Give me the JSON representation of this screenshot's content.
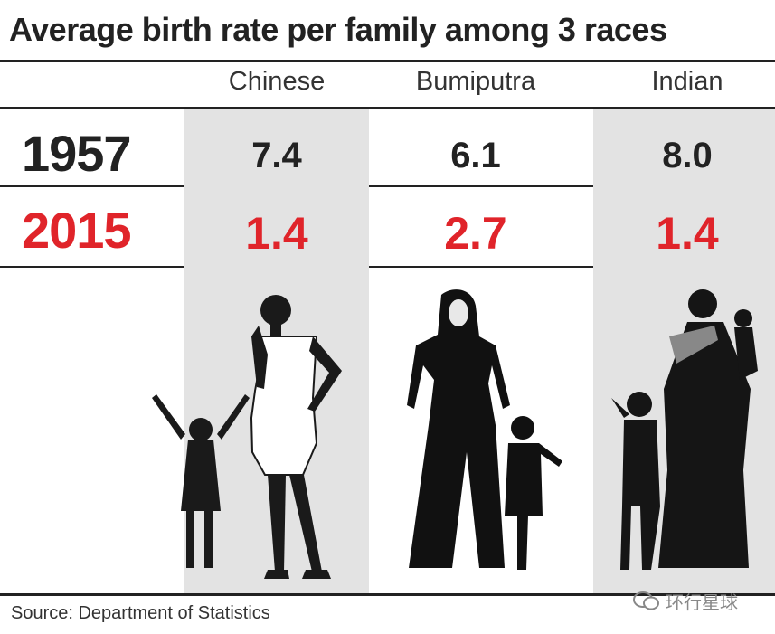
{
  "title": "Average birth rate per family among 3 races",
  "source": "Source: Department of Statistics",
  "watermark": "环行星球",
  "colors": {
    "year_1957": "#222222",
    "year_2015": "#e0242a",
    "band": "#e3e3e3"
  },
  "chart_data": {
    "type": "table",
    "title": "Average birth rate per family among 3 races",
    "columns": [
      "Chinese",
      "Bumiputra",
      "Indian"
    ],
    "rows": [
      {
        "label": "1957",
        "values": [
          "7.4",
          "6.1",
          "8.0"
        ]
      },
      {
        "label": "2015",
        "values": [
          "1.4",
          "2.7",
          "1.4"
        ]
      }
    ]
  }
}
